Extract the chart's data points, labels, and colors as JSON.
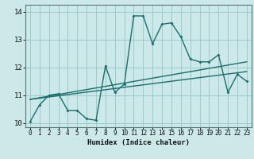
{
  "title": "",
  "xlabel": "Humidex (Indice chaleur)",
  "bg_color": "#cce8e8",
  "grid_color": "#99cccc",
  "line_color": "#1a6e6e",
  "xlim": [
    -0.5,
    23.5
  ],
  "ylim": [
    9.85,
    14.25
  ],
  "xticks": [
    0,
    1,
    2,
    3,
    4,
    5,
    6,
    7,
    8,
    9,
    10,
    11,
    12,
    13,
    14,
    15,
    16,
    17,
    18,
    19,
    20,
    21,
    22,
    23
  ],
  "yticks": [
    10,
    11,
    12,
    13,
    14
  ],
  "line1_x": [
    0,
    1,
    2,
    3,
    4,
    5,
    6,
    7,
    8,
    9,
    10,
    11,
    12,
    13,
    14,
    15,
    16,
    17,
    18,
    19,
    20,
    21,
    22,
    23
  ],
  "line1_y": [
    10.05,
    10.65,
    11.0,
    11.05,
    10.45,
    10.45,
    10.15,
    10.1,
    12.05,
    11.1,
    11.4,
    13.85,
    13.85,
    12.85,
    13.55,
    13.6,
    13.1,
    12.3,
    12.2,
    12.2,
    12.45,
    11.1,
    11.75,
    11.5
  ],
  "line2_x": [
    0,
    23
  ],
  "line2_y": [
    10.85,
    11.85
  ],
  "line3_x": [
    0,
    23
  ],
  "line3_y": [
    10.85,
    12.2
  ]
}
